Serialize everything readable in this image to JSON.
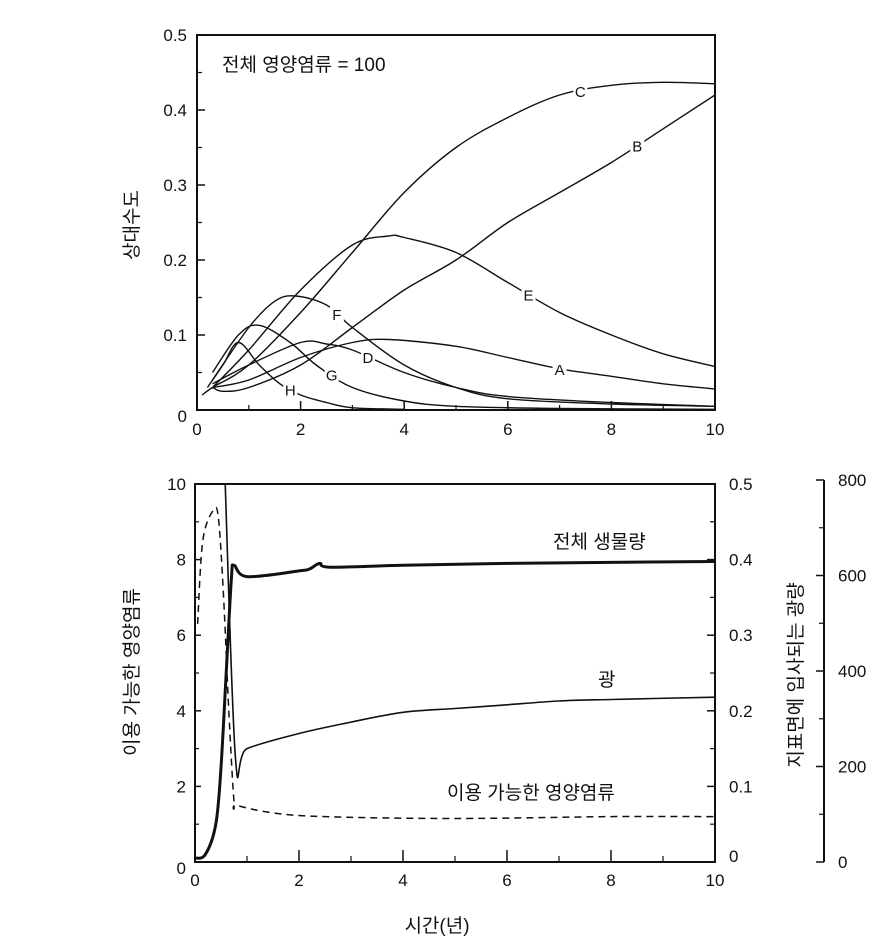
{
  "chart_data": [
    {
      "type": "line",
      "title": "",
      "annotation": "전체 영양염류 = 100",
      "xlabel": "",
      "ylabel": "상대수도",
      "xlim": [
        0,
        10
      ],
      "ylim": [
        0,
        0.5
      ],
      "x_ticks": [
        "0",
        "2",
        "4",
        "6",
        "8",
        "10"
      ],
      "y_ticks": [
        "0",
        "0.1",
        "0.2",
        "0.3",
        "0.4",
        "0.5"
      ],
      "grid": false,
      "series": [
        {
          "name": "C",
          "label_x": 7.4,
          "points": [
            [
              0.1,
              0.02
            ],
            [
              0.3,
              0.03
            ],
            [
              1,
              0.06
            ],
            [
              2,
              0.13
            ],
            [
              3,
              0.21
            ],
            [
              4,
              0.29
            ],
            [
              5,
              0.35
            ],
            [
              6,
              0.39
            ],
            [
              7,
              0.42
            ],
            [
              8,
              0.433
            ],
            [
              9,
              0.437
            ],
            [
              10,
              0.435
            ]
          ]
        },
        {
          "name": "B",
          "label_x": 8.5,
          "points": [
            [
              0.3,
              0.03
            ],
            [
              0.5,
              0.025
            ],
            [
              1,
              0.03
            ],
            [
              2,
              0.06
            ],
            [
              3,
              0.11
            ],
            [
              4,
              0.16
            ],
            [
              5,
              0.2
            ],
            [
              6,
              0.25
            ],
            [
              7,
              0.29
            ],
            [
              8,
              0.33
            ],
            [
              9,
              0.375
            ],
            [
              10,
              0.42
            ]
          ]
        },
        {
          "name": "E",
          "label_x": 6.4,
          "points": [
            [
              0.3,
              0.03
            ],
            [
              1,
              0.08
            ],
            [
              2,
              0.16
            ],
            [
              3,
              0.22
            ],
            [
              3.7,
              0.232
            ],
            [
              4,
              0.23
            ],
            [
              5,
              0.21
            ],
            [
              6,
              0.17
            ],
            [
              7,
              0.13
            ],
            [
              8,
              0.1
            ],
            [
              9,
              0.075
            ],
            [
              10,
              0.058
            ]
          ]
        },
        {
          "name": "F",
          "label_x": 2.7,
          "points": [
            [
              0.3,
              0.04
            ],
            [
              1,
              0.11
            ],
            [
              1.5,
              0.145
            ],
            [
              1.9,
              0.152
            ],
            [
              2.5,
              0.14
            ],
            [
              3,
              0.11
            ],
            [
              4,
              0.06
            ],
            [
              5,
              0.03
            ],
            [
              6,
              0.015
            ],
            [
              8,
              0.008
            ],
            [
              10,
              0.005
            ]
          ]
        },
        {
          "name": "A",
          "label_x": 7,
          "points": [
            [
              0.3,
              0.03
            ],
            [
              1,
              0.04
            ],
            [
              2,
              0.07
            ],
            [
              3,
              0.09
            ],
            [
              3.7,
              0.094
            ],
            [
              5,
              0.085
            ],
            [
              6,
              0.07
            ],
            [
              7,
              0.055
            ],
            [
              8,
              0.045
            ],
            [
              9,
              0.035
            ],
            [
              10,
              0.028
            ]
          ]
        },
        {
          "name": "D",
          "label_x": 3.3,
          "points": [
            [
              0.3,
              0.035
            ],
            [
              1,
              0.06
            ],
            [
              2,
              0.09
            ],
            [
              2.5,
              0.088
            ],
            [
              3,
              0.08
            ],
            [
              4,
              0.05
            ],
            [
              5,
              0.03
            ],
            [
              6,
              0.018
            ],
            [
              8,
              0.01
            ],
            [
              10,
              0.005
            ]
          ]
        },
        {
          "name": "G",
          "label_x": 2.6,
          "points": [
            [
              0.3,
              0.05
            ],
            [
              0.8,
              0.1
            ],
            [
              1.2,
              0.113
            ],
            [
              1.8,
              0.09
            ],
            [
              2.3,
              0.06
            ],
            [
              3,
              0.03
            ],
            [
              4,
              0.012
            ],
            [
              5,
              0.005
            ],
            [
              7,
              0.002
            ],
            [
              10,
              0.001
            ]
          ]
        },
        {
          "name": "H",
          "label_x": 1.8,
          "points": [
            [
              0.2,
              0.03
            ],
            [
              0.5,
              0.06
            ],
            [
              0.8,
              0.09
            ],
            [
              1.2,
              0.06
            ],
            [
              1.6,
              0.035
            ],
            [
              2,
              0.02
            ],
            [
              2.5,
              0.01
            ],
            [
              3,
              0.003
            ],
            [
              4,
              0.001
            ]
          ]
        }
      ]
    },
    {
      "type": "line",
      "title": "",
      "xlabel": "시간(년)",
      "ylabel_left": "이용 가능한 영양염류",
      "ylabel_right": "지표면에 입사되는 광량",
      "xlim": [
        0,
        10
      ],
      "ylim_left": [
        0,
        10
      ],
      "ylim_right": [
        0,
        0.5
      ],
      "ylim_far_right": [
        0,
        800
      ],
      "x_ticks": [
        "0",
        "2",
        "4",
        "6",
        "8",
        "10"
      ],
      "y_ticks_left": [
        "0",
        "2",
        "4",
        "6",
        "8",
        "10"
      ],
      "y_ticks_right": [
        "0",
        "0.1",
        "0.2",
        "0.3",
        "0.4",
        "0.5"
      ],
      "y_ticks_far_right": [
        "0",
        "200",
        "400",
        "600",
        "800"
      ],
      "grid": false,
      "series": [
        {
          "name": "전체 생물량",
          "axis": "far_right",
          "style": "thick",
          "points": [
            [
              0,
              8
            ],
            [
              0.2,
              16
            ],
            [
              0.4,
              80
            ],
            [
              0.5,
              200
            ],
            [
              0.6,
              400
            ],
            [
              0.7,
              600
            ],
            [
              0.75,
              628
            ],
            [
              1,
              604
            ],
            [
              2,
              616
            ],
            [
              2.2,
              620
            ],
            [
              2.4,
              632
            ],
            [
              2.6,
              624
            ],
            [
              4,
              628
            ],
            [
              6,
              632
            ],
            [
              8,
              634
            ],
            [
              10,
              636
            ]
          ]
        },
        {
          "name": "광",
          "axis": "right",
          "style": "thin",
          "points": [
            [
              0.58,
              0.5
            ],
            [
              0.78,
              0.135
            ],
            [
              1,
              0.15
            ],
            [
              2,
              0.17
            ],
            [
              3,
              0.185
            ],
            [
              4,
              0.198
            ],
            [
              5,
              0.203
            ],
            [
              6,
              0.208
            ],
            [
              7,
              0.213
            ],
            [
              8,
              0.215
            ],
            [
              10,
              0.218
            ]
          ]
        },
        {
          "name": "이용 가능한 영양염류",
          "axis": "left",
          "style": "dashed",
          "points": [
            [
              0.05,
              6.3
            ],
            [
              0.15,
              8.5
            ],
            [
              0.35,
              9.3
            ],
            [
              0.45,
              9.1
            ],
            [
              0.55,
              7
            ],
            [
              0.65,
              4
            ],
            [
              0.75,
              1.6
            ],
            [
              0.8,
              1.5
            ],
            [
              1.5,
              1.3
            ],
            [
              2.5,
              1.2
            ],
            [
              5,
              1.15
            ],
            [
              8,
              1.2
            ],
            [
              10,
              1.2
            ]
          ]
        }
      ]
    }
  ]
}
